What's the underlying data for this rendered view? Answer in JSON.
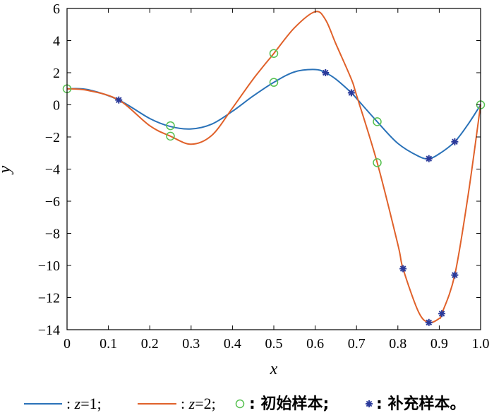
{
  "chart_data": {
    "type": "line",
    "title": "",
    "xlabel": "x",
    "ylabel": "y",
    "xlim": [
      0,
      1
    ],
    "ylim": [
      -14,
      6
    ],
    "x_ticks": [
      "0",
      "0.1",
      "0.2",
      "0.3",
      "0.4",
      "0.5",
      "0.6",
      "0.7",
      "0.8",
      "0.9",
      "1.0"
    ],
    "y_ticks": [
      "6",
      "4",
      "2",
      "0",
      "−2",
      "−4",
      "−6",
      "−8",
      "−10",
      "−12",
      "−14"
    ],
    "grid": false,
    "legend_position": "bottom",
    "series": [
      {
        "name": ": z=1;",
        "color": "#2a72b8",
        "x": [
          0,
          0.05,
          0.125,
          0.2,
          0.25,
          0.3,
          0.35,
          0.4,
          0.45,
          0.5,
          0.55,
          0.6,
          0.625,
          0.65,
          0.6875,
          0.7,
          0.75,
          0.8,
          0.85,
          0.875,
          0.9,
          0.9375,
          0.97,
          1.0
        ],
        "y": [
          1.0,
          0.95,
          0.3,
          -0.85,
          -1.35,
          -1.5,
          -1.2,
          -0.4,
          0.55,
          1.4,
          2.05,
          2.2,
          2.0,
          1.6,
          0.75,
          0.4,
          -1.05,
          -2.4,
          -3.2,
          -3.35,
          -3.05,
          -2.3,
          -1.2,
          0.0
        ]
      },
      {
        "name": ": z=2;",
        "color": "#e0612a",
        "x": [
          0,
          0.05,
          0.125,
          0.2,
          0.25,
          0.3,
          0.35,
          0.4,
          0.45,
          0.5,
          0.55,
          0.6,
          0.625,
          0.65,
          0.6875,
          0.7,
          0.75,
          0.8,
          0.8125,
          0.85,
          0.875,
          0.9,
          0.90625,
          0.9375,
          0.97,
          1.0
        ],
        "y": [
          1.0,
          0.9,
          0.3,
          -1.3,
          -1.95,
          -2.45,
          -1.9,
          -0.2,
          1.6,
          3.2,
          4.8,
          5.8,
          5.3,
          3.8,
          1.6,
          0.6,
          -3.6,
          -8.7,
          -10.2,
          -12.9,
          -13.55,
          -13.3,
          -13.0,
          -10.6,
          -5.6,
          0.0
        ]
      },
      {
        "name": ": 初始样本;",
        "color": "#55c04f",
        "marker": "circle",
        "x": [
          0,
          0.25,
          0.25,
          0.5,
          0.5,
          0.75,
          0.75,
          1.0
        ],
        "y": [
          1.0,
          -1.3,
          -1.95,
          1.4,
          3.2,
          -1.05,
          -3.6,
          0.0
        ]
      },
      {
        "name": ": 补充样本。",
        "color": "#2b3a9a",
        "marker": "asterisk",
        "x": [
          0.125,
          0.625,
          0.6875,
          0.875,
          0.9375,
          0.8125,
          0.875,
          0.90625,
          0.9375
        ],
        "y": [
          0.3,
          2.0,
          0.75,
          -3.35,
          -2.3,
          -10.2,
          -13.55,
          -13.0,
          -10.6
        ]
      }
    ]
  },
  "legend": {
    "items": [
      {
        "prefix": ":",
        "var": "z",
        "rest": "=1;"
      },
      {
        "prefix": ":",
        "var": "z",
        "rest": "=2;"
      },
      {
        "text": ": 初始样本;"
      },
      {
        "text": ": 补充样本。"
      }
    ]
  }
}
